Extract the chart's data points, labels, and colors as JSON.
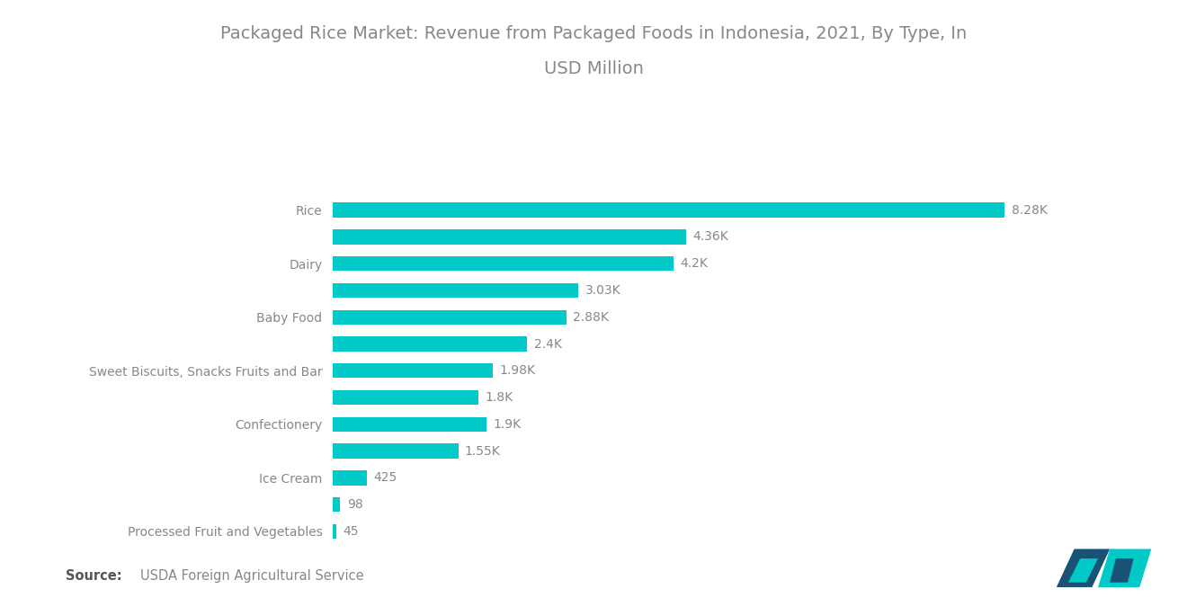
{
  "title_line1": "Packaged Rice Market: Revenue from Packaged Foods in Indonesia, 2021, By Type, In",
  "title_line2": "USD Million",
  "bar_color": "#00C9C8",
  "background_color": "#FFFFFF",
  "categories": [
    "Processed Fruit and Vegetables",
    "",
    "Ice Cream",
    "",
    "Confectionery",
    "",
    "Sweet Biscuits, Snacks Fruits and Bar",
    "",
    "Baby Food",
    "",
    "Dairy",
    "",
    "Rice"
  ],
  "values": [
    45,
    98,
    425,
    1550,
    1900,
    1800,
    1980,
    2400,
    2880,
    3030,
    4200,
    4360,
    8280
  ],
  "labels": [
    "45",
    "98",
    "425",
    "1.55K",
    "1.9K",
    "1.8K",
    "1.98K",
    "2.4K",
    "2.88K",
    "3.03K",
    "4.2K",
    "4.36K",
    "8.28K"
  ],
  "xlim": [
    0,
    9500
  ],
  "title_fontsize": 14,
  "label_fontsize": 10,
  "tick_fontsize": 10,
  "source_fontsize": 10.5,
  "title_color": "#888888",
  "tick_color": "#888888",
  "label_color": "#888888",
  "source_bold_color": "#555555",
  "source_normal_color": "#888888"
}
